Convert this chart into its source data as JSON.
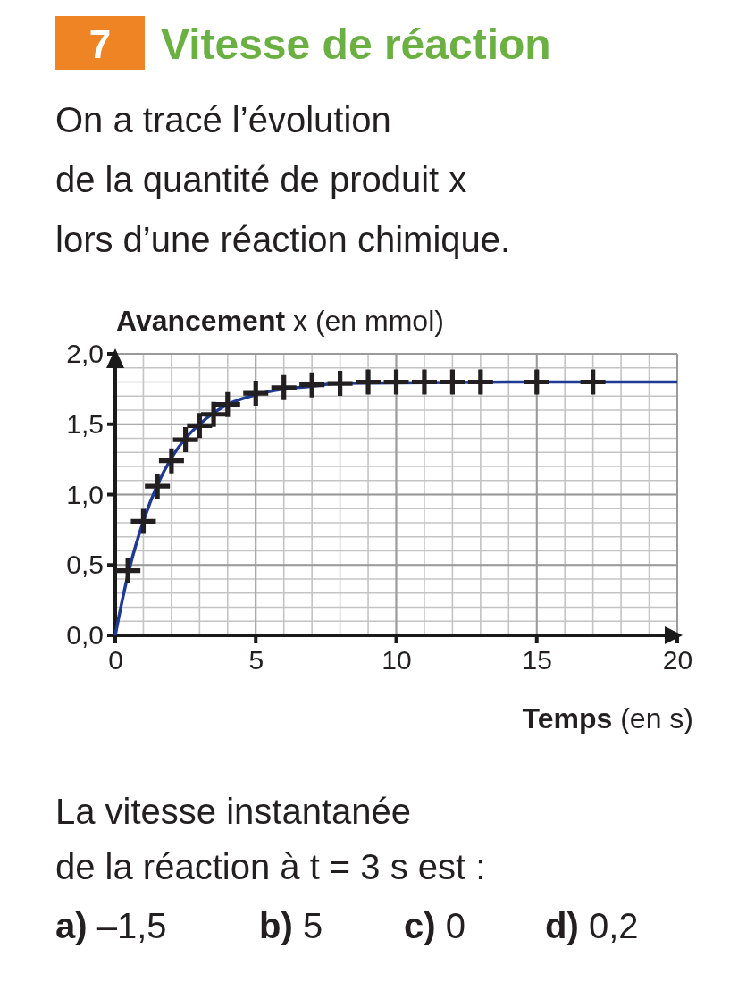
{
  "chart_data": {
    "type": "line",
    "title": "Vitesse de réaction",
    "subtitle": "On a tracé l’évolution\nde la quantité de produit x\nlors d’une réaction chimique.",
    "xlabel": "Temps (en s)",
    "ylabel": "Avancement x (en mmol)",
    "annotations": [
      "7",
      "La vitesse instantanée\nde la réaction à t = 3 s est :",
      "a) –1,5",
      "b) 5",
      "c) 0",
      "d) 0,2"
    ],
    "xlim": [
      0,
      20
    ],
    "ylim": [
      0,
      2
    ],
    "xticks": [
      0,
      5,
      10,
      15,
      20
    ],
    "yticks": [
      {
        "value": 0,
        "label": "0,0"
      },
      {
        "value": 0.5,
        "label": "0,5"
      },
      {
        "value": 1,
        "label": "1,0"
      },
      {
        "value": 1.5,
        "label": "1,5"
      },
      {
        "value": 2,
        "label": "2,0"
      }
    ],
    "grid": true,
    "series": [
      {
        "color": "#1f3a93",
        "marker": "none",
        "x": [
          0,
          0.25,
          0.5,
          1,
          1.5,
          2,
          2.5,
          3,
          3.5,
          4,
          5,
          6,
          7,
          8,
          14,
          16,
          18,
          20
        ],
        "values": [
          0,
          0.25,
          0.47,
          0.81,
          1.07,
          1.26,
          1.4,
          1.5,
          1.58,
          1.64,
          1.71,
          1.75,
          1.77,
          1.79,
          1.8,
          1.8,
          1.8,
          1.8
        ]
      },
      {
        "type": "scatter",
        "color": "#231f20",
        "marker": "cross",
        "x": [
          0.45,
          1,
          1.5,
          2,
          2.5,
          3,
          3.5,
          4,
          5,
          6,
          7,
          8,
          9,
          10,
          11,
          12,
          13,
          15,
          17
        ],
        "values": [
          0.46,
          0.81,
          1.06,
          1.24,
          1.39,
          1.49,
          1.57,
          1.64,
          1.72,
          1.76,
          1.78,
          1.79,
          1.8,
          1.8,
          1.8,
          1.8,
          1.8,
          1.8,
          1.8
        ]
      }
    ]
  }
}
